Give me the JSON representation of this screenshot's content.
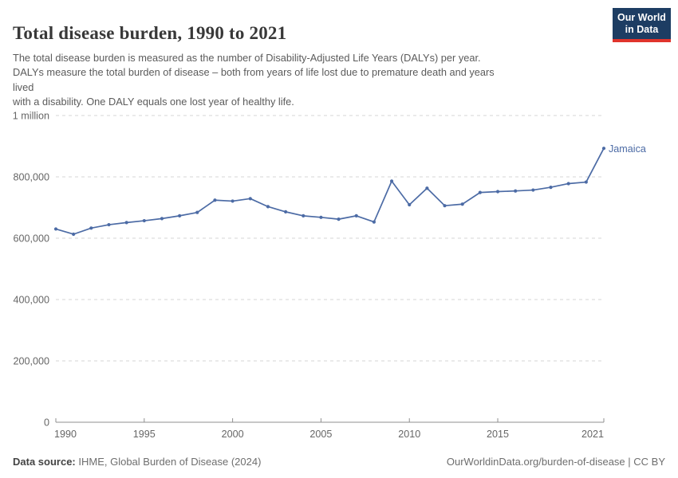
{
  "header": {
    "title": "Total disease burden, 1990 to 2021",
    "subtitle_lines": [
      "The total disease burden is measured as the number of Disability-Adjusted Life Years (DALYs) per year.",
      "DALYs measure the total burden of disease – both from years of life lost due to premature death and years",
      "lived",
      "with a disability. One DALY equals one lost year of healthy life."
    ]
  },
  "logo": {
    "line1": "Our World",
    "line2": "in Data"
  },
  "colors": {
    "line": "#4c6ba5",
    "grid": "#d6d6d6",
    "axis": "#8f8f8f",
    "tick_text": "#666666",
    "logo_bg": "#1d3d63",
    "logo_stripe": "#e0342c"
  },
  "footer": {
    "datasource_label": "Data source:",
    "datasource_value": " IHME, Global Burden of Disease (2024)",
    "url": "OurWorldinData.org/burden-of-disease",
    "separator": " | ",
    "license": "CC BY"
  },
  "chart_data": {
    "type": "line",
    "title": "Total disease burden, 1990 to 2021",
    "xlabel": "",
    "ylabel": "",
    "xlim": [
      1990,
      2021
    ],
    "ylim": [
      0,
      1000000
    ],
    "grid": "horizontal-dashed",
    "legend_position": "end-of-line-label",
    "xticks": [
      1990,
      1995,
      2000,
      2005,
      2010,
      2015,
      2021
    ],
    "yticks": [
      {
        "value": 0,
        "label": "0"
      },
      {
        "value": 200000,
        "label": "200,000"
      },
      {
        "value": 400000,
        "label": "400,000"
      },
      {
        "value": 600000,
        "label": "600,000"
      },
      {
        "value": 800000,
        "label": "800,000"
      },
      {
        "value": 1000000,
        "label": "1 million"
      }
    ],
    "series": [
      {
        "name": "Jamaica",
        "x": [
          1990,
          1991,
          1992,
          1993,
          1994,
          1995,
          1996,
          1997,
          1998,
          1999,
          2000,
          2001,
          2002,
          2003,
          2004,
          2005,
          2006,
          2007,
          2008,
          2009,
          2010,
          2011,
          2012,
          2013,
          2014,
          2015,
          2016,
          2017,
          2018,
          2019,
          2020,
          2021
        ],
        "values": [
          630000,
          613000,
          633000,
          644000,
          651000,
          657000,
          664000,
          673000,
          684000,
          724000,
          721000,
          729000,
          703000,
          686000,
          673000,
          668000,
          662000,
          673000,
          653000,
          786000,
          709000,
          763000,
          706000,
          711000,
          749000,
          752000,
          754000,
          757000,
          766000,
          778000,
          783000,
          893000
        ]
      }
    ]
  }
}
